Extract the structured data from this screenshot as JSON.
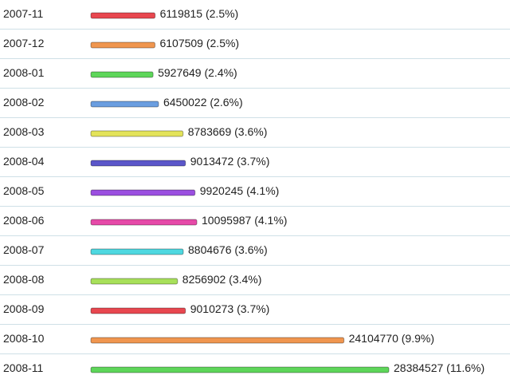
{
  "chart_data": {
    "type": "bar",
    "orientation": "horizontal",
    "categories": [
      "2007-11",
      "2007-12",
      "2008-01",
      "2008-02",
      "2008-03",
      "2008-04",
      "2008-05",
      "2008-06",
      "2008-07",
      "2008-08",
      "2008-09",
      "2008-10",
      "2008-11"
    ],
    "values": [
      6119815,
      6107509,
      5927649,
      6450022,
      8783669,
      9013472,
      9920245,
      10095987,
      8804676,
      8256902,
      9010273,
      24104770,
      28384527
    ],
    "value_labels": [
      "6119815 (2.5%)",
      "6107509 (2.5%)",
      "5927649 (2.4%)",
      "6450022 (2.6%)",
      "8783669 (3.6%)",
      "9013472 (3.7%)",
      "9920245 (4.1%)",
      "10095987 (4.1%)",
      "8804676 (3.6%)",
      "8256902 (3.4%)",
      "9010273 (3.7%)",
      "24104770 (9.9%)",
      "28384527 (11.6%)"
    ],
    "colors": [
      "#e8474f",
      "#f0964f",
      "#5ed65a",
      "#6b9ee0",
      "#e3e35a",
      "#5b56c9",
      "#9b4fe0",
      "#e64aa8",
      "#4fd8e0",
      "#a8e05a",
      "#e8474f",
      "#f0964f",
      "#5ed65a"
    ]
  }
}
